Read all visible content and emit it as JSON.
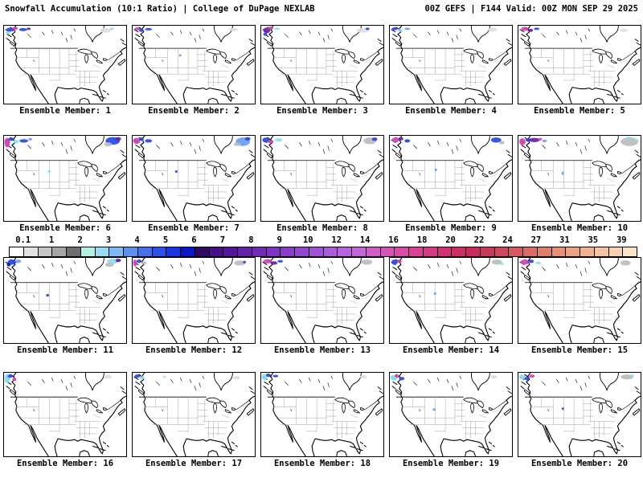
{
  "header": {
    "title_left": "Snowfall Accumulation (10:1 Ratio) | College of DuPage NEXLAB",
    "title_right": "00Z GEFS | F144 Valid: 00Z MON SEP 29 2025"
  },
  "colorbar": {
    "labels": [
      "0.1",
      "1",
      "2",
      "3",
      "4",
      "5",
      "6",
      "7",
      "8",
      "9",
      "10",
      "12",
      "14",
      "16",
      "18",
      "20",
      "22",
      "24",
      "27",
      "31",
      "35",
      "39"
    ],
    "cell_colors": [
      "#ffffff",
      "#e2e2e2",
      "#c6c6c6",
      "#a6a6a6",
      "#6f6f6f",
      "#b2f0e2",
      "#96dcf2",
      "#80b8f6",
      "#5e90f2",
      "#4670f0",
      "#2c52ea",
      "#1a34e2",
      "#0a18c6",
      "#300a66",
      "#451088",
      "#541698",
      "#6421aa",
      "#7229b6",
      "#7f33c0",
      "#8b3dc8",
      "#9647d0",
      "#a051d6",
      "#ab5cdc",
      "#b763e0",
      "#c465da",
      "#cf5ec8",
      "#d554b8",
      "#d94aa6",
      "#da4094",
      "#d63a82",
      "#d23272",
      "#cd2e66",
      "#c92b5c",
      "#c93958",
      "#cd485c",
      "#d45a60",
      "#d96c64",
      "#e07e6c",
      "#e69076",
      "#eca284",
      "#f1b294",
      "#f5c2a4",
      "#f8d1b4",
      "#fbe3c8"
    ]
  },
  "panels": {
    "palette": {
      "cyan": "#8ae0f0",
      "ltblue": "#6a9cf4",
      "blue": "#2448e4",
      "deepblue": "#0a16c0",
      "purple": "#6a1ca8",
      "dkpurple": "#3c0c72",
      "magenta": "#cc42b6",
      "pink": "#d8398a",
      "gray": "#bcbcbc",
      "ltgray": "#dedede"
    },
    "members": [
      {
        "id": 1,
        "label": "Ensemble Member: 1",
        "blobs": [
          [
            8,
            5,
            5,
            2.5,
            "blue"
          ],
          [
            14,
            3.5,
            3.5,
            2,
            "magenta"
          ],
          [
            5,
            9,
            3,
            2,
            "cyan"
          ],
          [
            24,
            5,
            5,
            2,
            "blue"
          ],
          [
            31,
            4,
            2.5,
            1.5,
            "purple"
          ],
          [
            128,
            6,
            7,
            3,
            "ltgray"
          ],
          [
            136,
            4,
            2.5,
            1.5,
            "cyan"
          ]
        ]
      },
      {
        "id": 2,
        "label": "Ensemble Member: 2",
        "blobs": [
          [
            6,
            4,
            3.5,
            2,
            "magenta"
          ],
          [
            11,
            6,
            3,
            2,
            "blue"
          ],
          [
            20,
            4.5,
            4.5,
            1.5,
            "blue"
          ],
          [
            60,
            38,
            1.5,
            1.5,
            "ltblue"
          ],
          [
            127,
            5,
            6,
            2,
            "ltgray"
          ]
        ]
      },
      {
        "id": 3,
        "label": "Ensemble Member: 3",
        "blobs": [
          [
            7,
            6,
            4.5,
            3.5,
            "purple"
          ],
          [
            12,
            3,
            3.5,
            2,
            "magenta"
          ],
          [
            5,
            11,
            2.5,
            2,
            "blue"
          ],
          [
            20,
            4,
            3.5,
            1.5,
            "cyan"
          ],
          [
            128,
            6,
            8,
            3,
            "ltgray"
          ],
          [
            134,
            4,
            2.5,
            1.5,
            "blue"
          ]
        ]
      },
      {
        "id": 4,
        "label": "Ensemble Member: 4",
        "blobs": [
          [
            6,
            4,
            3.5,
            2,
            "blue"
          ],
          [
            13,
            6,
            3,
            2,
            "cyan"
          ],
          [
            22,
            4,
            3.5,
            1.5,
            "ltblue"
          ],
          [
            129,
            5,
            6,
            2.5,
            "ltgray"
          ]
        ]
      },
      {
        "id": 5,
        "label": "Ensemble Member: 5",
        "blobs": [
          [
            8,
            4,
            4.5,
            2.5,
            "magenta"
          ],
          [
            15,
            6,
            3.5,
            2,
            "purple"
          ],
          [
            23,
            4,
            3.5,
            1.5,
            "blue"
          ],
          [
            133,
            6,
            5,
            2,
            "ltgray"
          ]
        ]
      },
      {
        "id": 6,
        "label": "Ensemble Member: 6",
        "blobs": [
          [
            4,
            8,
            3.5,
            5.5,
            "magenta"
          ],
          [
            9,
            4,
            3.5,
            2,
            "blue"
          ],
          [
            15,
            7,
            3.5,
            2,
            "cyan"
          ],
          [
            25,
            6,
            5.5,
            2,
            "blue"
          ],
          [
            33,
            4,
            2.5,
            1.5,
            "ltblue"
          ],
          [
            57,
            42,
            2,
            1.5,
            "cyan"
          ],
          [
            137,
            6,
            9,
            4.5,
            "blue"
          ],
          [
            144,
            3.5,
            3.5,
            2,
            "purple"
          ],
          [
            131,
            10,
            5,
            2.5,
            "gray"
          ]
        ]
      },
      {
        "id": 7,
        "label": "Ensemble Member: 7",
        "blobs": [
          [
            5,
            6,
            4.5,
            3.5,
            "magenta"
          ],
          [
            11,
            4,
            3,
            2,
            "blue"
          ],
          [
            20,
            6,
            4.5,
            2,
            "blue"
          ],
          [
            55,
            42,
            1.5,
            1.5,
            "blue"
          ],
          [
            139,
            7,
            9,
            5,
            "ltblue"
          ],
          [
            145,
            3.5,
            3.5,
            2,
            "blue"
          ],
          [
            132,
            10,
            4.5,
            2,
            "gray"
          ]
        ]
      },
      {
        "id": 8,
        "label": "Ensemble Member: 8",
        "blobs": [
          [
            6,
            5,
            4.5,
            3,
            "blue"
          ],
          [
            12,
            7,
            3.5,
            2,
            "magenta"
          ],
          [
            22,
            5,
            4.5,
            2,
            "cyan"
          ],
          [
            137,
            6,
            8,
            4,
            "gray"
          ],
          [
            143,
            4,
            3.5,
            2,
            "blue"
          ]
        ]
      },
      {
        "id": 9,
        "label": "Ensemble Member: 9",
        "blobs": [
          [
            7,
            5,
            4.5,
            3,
            "magenta"
          ],
          [
            14,
            3.5,
            3,
            2,
            "purple"
          ],
          [
            22,
            6,
            3.5,
            2,
            "blue"
          ],
          [
            58,
            40,
            1.5,
            1.5,
            "ltblue"
          ],
          [
            134,
            5,
            6.5,
            3,
            "blue"
          ],
          [
            141,
            8,
            3.5,
            2,
            "gray"
          ]
        ]
      },
      {
        "id": 10,
        "label": "Ensemble Member: 10",
        "blobs": [
          [
            5,
            7,
            4,
            4,
            "magenta"
          ],
          [
            12,
            5,
            3,
            2,
            "blue"
          ],
          [
            20,
            5,
            7,
            2.5,
            "purple"
          ],
          [
            27,
            4,
            3,
            1.5,
            "magenta"
          ],
          [
            33,
            6,
            3,
            1.5,
            "ltblue"
          ],
          [
            56,
            44,
            1.5,
            2,
            "ltblue"
          ],
          [
            140,
            7,
            11,
            5,
            "gray"
          ],
          [
            139,
            2.5,
            4,
            1.5,
            "cyan"
          ],
          [
            148,
            5,
            2.5,
            1.5,
            "cyan"
          ]
        ]
      },
      {
        "id": 11,
        "label": "Ensemble Member: 11",
        "blobs": [
          [
            10,
            5,
            5.5,
            3,
            "blue"
          ],
          [
            18,
            4,
            3.5,
            2,
            "ltblue"
          ],
          [
            6,
            8,
            2.5,
            2,
            "deepblue"
          ],
          [
            55,
            44,
            2,
            1.5,
            "blue"
          ],
          [
            137,
            4,
            7,
            3,
            "cyan"
          ],
          [
            144,
            3,
            3.5,
            2,
            "purple"
          ],
          [
            133,
            8,
            5.5,
            2.5,
            "gray"
          ]
        ]
      },
      {
        "id": 12,
        "label": "Ensemble Member: 12",
        "blobs": [
          [
            3,
            6,
            2.5,
            4,
            "magenta"
          ],
          [
            8,
            4,
            3,
            2,
            "blue"
          ],
          [
            14,
            6,
            3.5,
            2,
            "gray"
          ],
          [
            135,
            6,
            7,
            3,
            "gray"
          ],
          [
            141,
            5,
            2,
            1.5,
            "blue"
          ]
        ]
      },
      {
        "id": 13,
        "label": "Ensemble Member: 13",
        "blobs": [
          [
            8,
            4,
            5.5,
            2.5,
            "magenta"
          ],
          [
            16,
            6,
            4.5,
            2,
            "purple"
          ],
          [
            24,
            4,
            3.5,
            1.5,
            "blue"
          ],
          [
            133,
            5,
            7,
            3,
            "gray"
          ]
        ]
      },
      {
        "id": 14,
        "label": "Ensemble Member: 14",
        "blobs": [
          [
            6,
            5,
            4,
            3,
            "blue"
          ],
          [
            12,
            4,
            3,
            2,
            "magenta"
          ],
          [
            57,
            42,
            1.5,
            1.5,
            "ltblue"
          ],
          [
            135,
            5,
            6.5,
            3,
            "gray"
          ],
          [
            141,
            7,
            2.5,
            1.5,
            "cyan"
          ]
        ]
      },
      {
        "id": 15,
        "label": "Ensemble Member: 15",
        "blobs": [
          [
            8,
            5,
            5.5,
            3,
            "magenta"
          ],
          [
            16,
            4,
            3.5,
            2,
            "blue"
          ],
          [
            25,
            6,
            3.5,
            1.5,
            "cyan"
          ],
          [
            135,
            6,
            6.5,
            3,
            "gray"
          ]
        ]
      },
      {
        "id": 16,
        "label": "Ensemble Member: 16",
        "blobs": [
          [
            4,
            7,
            3.5,
            5.5,
            "cyan"
          ],
          [
            8,
            4,
            3.5,
            2,
            "blue"
          ],
          [
            13,
            8,
            2.5,
            2,
            "magenta"
          ],
          [
            131,
            5,
            5.5,
            2,
            "ltgray"
          ]
        ]
      },
      {
        "id": 17,
        "label": "Ensemble Member: 17",
        "blobs": [
          [
            6,
            4,
            3.5,
            2,
            "blue"
          ],
          [
            12,
            6,
            3,
            2,
            "cyan"
          ],
          [
            40,
            5,
            2,
            1,
            "cyan"
          ],
          [
            131,
            6,
            4.5,
            2,
            "ltgray"
          ]
        ]
      },
      {
        "id": 18,
        "label": "Ensemble Member: 18",
        "blobs": [
          [
            4,
            5,
            3.5,
            3.5,
            "cyan"
          ],
          [
            9,
            3,
            3,
            2,
            "blue"
          ],
          [
            18,
            4,
            3.5,
            1.5,
            "blue"
          ],
          [
            129,
            5,
            4.5,
            2,
            "ltgray"
          ]
        ]
      },
      {
        "id": 19,
        "label": "Ensemble Member: 19",
        "blobs": [
          [
            5,
            6,
            4.5,
            3.5,
            "cyan"
          ],
          [
            9,
            4,
            3,
            2,
            "magenta"
          ],
          [
            15,
            7,
            3.5,
            2,
            "blue"
          ],
          [
            56,
            44,
            2,
            1.5,
            "ltblue"
          ],
          [
            131,
            5,
            4.5,
            2,
            "ltgray"
          ]
        ]
      },
      {
        "id": 20,
        "label": "Ensemble Member: 20",
        "blobs": [
          [
            5,
            5,
            4.5,
            3,
            "cyan"
          ],
          [
            11,
            7,
            3.5,
            2,
            "blue"
          ],
          [
            17,
            4,
            3.5,
            2,
            "magenta"
          ],
          [
            56,
            43,
            1.5,
            1.5,
            "blue"
          ],
          [
            137,
            5,
            8,
            3,
            "gray"
          ],
          [
            143,
            3.5,
            2.5,
            1.5,
            "cyan"
          ]
        ]
      }
    ]
  }
}
